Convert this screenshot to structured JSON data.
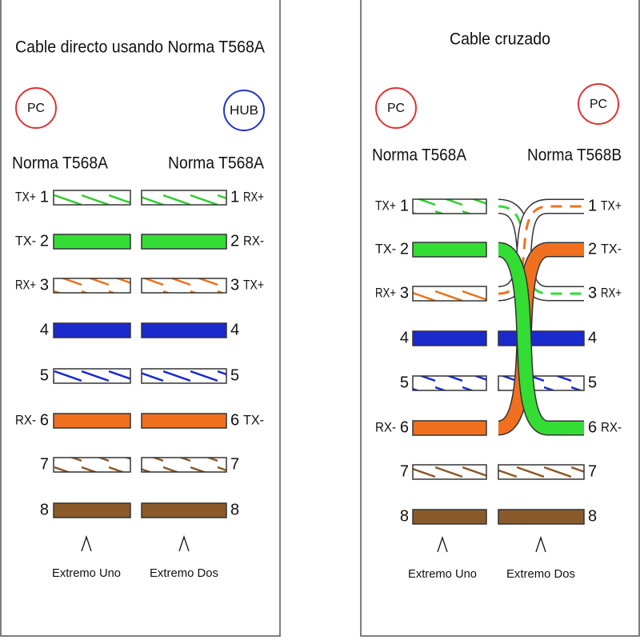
{
  "panels": [
    {
      "title": "Cable directo usando Norma T568A",
      "left_device": "PC",
      "right_device": "HUB",
      "left_standard": "Norma T568A",
      "right_standard": "Norma T568A",
      "pins": [
        {
          "left_label": "TX+",
          "left_pin": "1",
          "right_pin": "1",
          "right_label": "RX+"
        },
        {
          "left_label": "TX-",
          "left_pin": "2",
          "right_pin": "2",
          "right_label": "RX-"
        },
        {
          "left_label": "RX+",
          "left_pin": "3",
          "right_pin": "3",
          "right_label": "TX+"
        },
        {
          "left_pin": "4",
          "right_pin": "4"
        },
        {
          "left_pin": "5",
          "right_pin": "5"
        },
        {
          "left_label": "RX-",
          "left_pin": "6",
          "right_pin": "6",
          "right_label": "TX-"
        },
        {
          "left_pin": "7",
          "right_pin": "7"
        },
        {
          "left_pin": "8",
          "right_pin": "8"
        }
      ],
      "left_end": "Extremo Uno",
      "right_end": "Extremo Dos"
    },
    {
      "title": "Cable cruzado",
      "left_device": "PC",
      "right_device": "PC",
      "left_standard": "Norma T568A",
      "right_standard": "Norma T568B",
      "pins": [
        {
          "left_label": "TX+",
          "left_pin": "1",
          "right_pin": "1",
          "right_label": "TX+"
        },
        {
          "left_label": "TX-",
          "left_pin": "2",
          "right_pin": "2",
          "right_label": "TX-"
        },
        {
          "left_label": "RX+",
          "left_pin": "3",
          "right_pin": "3",
          "right_label": "RX+"
        },
        {
          "left_pin": "4",
          "right_pin": "4"
        },
        {
          "left_pin": "5",
          "right_pin": "5"
        },
        {
          "left_label": "RX-",
          "left_pin": "6",
          "right_pin": "6",
          "right_label": "RX-"
        },
        {
          "left_pin": "7",
          "right_pin": "7"
        },
        {
          "left_pin": "8",
          "right_pin": "8"
        }
      ],
      "left_end": "Extremo Uno",
      "right_end": "Extremo Dos"
    }
  ]
}
